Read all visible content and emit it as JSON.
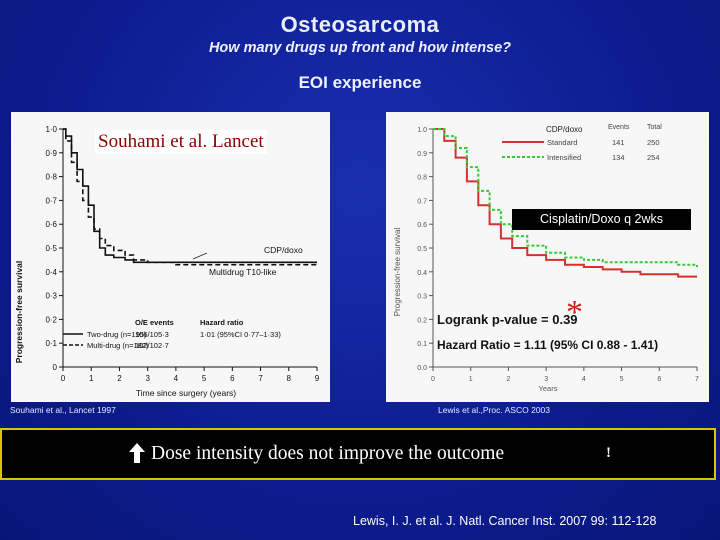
{
  "slide": {
    "title": "Osteosarcoma",
    "subtitle": "How many drugs up front and how intense?",
    "section": "EOI experience",
    "overlay_left": "Souhami et al. Lancet",
    "overlay_right": "Cisplatin/Doxo q 2wks",
    "asterisk": "*",
    "cite_left": "Souhami et al., Lancet 1997",
    "cite_right": "Lewis et al.,Proc. ASCO 2003",
    "banner_text": "Dose intensity does not improve the outcome",
    "banner_excl": "!",
    "reference": "Lewis, I. J. et al. J. Natl. Cancer Inst. 2007 99: 112-128",
    "colors": {
      "background": "#0d1d92",
      "banner_border": "#d9c400",
      "overlay_text": "#8b0000",
      "asterisk": "#d21b1b"
    }
  },
  "chart_data": [
    {
      "type": "line",
      "ylabel": "Progression-free survival",
      "xlabel": "Time since surgery (years)",
      "xlim": [
        0,
        9
      ],
      "ylim": [
        0,
        1.0
      ],
      "x_ticks": [
        "0",
        "1",
        "2",
        "3",
        "4",
        "5",
        "6",
        "7",
        "8",
        "9"
      ],
      "y_ticks": [
        "0",
        "0·1",
        "0·2",
        "0·3",
        "0·4",
        "0·5",
        "0·6",
        "0·7",
        "0·8",
        "0·9",
        "1·0"
      ],
      "annotation_cdp": "CDP/doxo",
      "annotation_multi": "Multidrug T10-like",
      "table_headers": [
        "O/E events",
        "Hazard ratio"
      ],
      "table_rows": [
        {
          "label": "Two-drug (n=195)",
          "oe": "106/105·3",
          "hr": "1·01 (95%CI 0·77–1·33)"
        },
        {
          "label": "Multi-drug (n=182)",
          "oe": "102/102·7",
          "hr": ""
        }
      ],
      "series": [
        {
          "name": "Two-drug (n=195)",
          "style": "solid",
          "x": [
            0,
            0.1,
            0.3,
            0.5,
            0.7,
            0.9,
            1.1,
            1.3,
            1.5,
            1.8,
            2.2,
            2.5,
            3,
            4,
            5,
            6,
            7,
            8,
            9
          ],
          "y": [
            1.0,
            0.97,
            0.9,
            0.83,
            0.76,
            0.68,
            0.57,
            0.5,
            0.47,
            0.46,
            0.45,
            0.44,
            0.44,
            0.44,
            0.44,
            0.44,
            0.44,
            0.44,
            0.44
          ]
        },
        {
          "name": "Multi-drug (n=182)",
          "style": "dashed",
          "x": [
            0,
            0.1,
            0.3,
            0.5,
            0.7,
            0.9,
            1.1,
            1.3,
            1.5,
            1.8,
            2.2,
            2.5,
            3,
            4,
            5,
            6,
            7,
            8,
            9
          ],
          "y": [
            1.0,
            0.95,
            0.86,
            0.78,
            0.7,
            0.63,
            0.58,
            0.54,
            0.51,
            0.49,
            0.47,
            0.45,
            0.44,
            0.43,
            0.43,
            0.43,
            0.43,
            0.43,
            0.43
          ]
        }
      ]
    },
    {
      "type": "line",
      "ylabel": "Progression-free survival",
      "xlabel": "Years",
      "xlim": [
        0,
        7
      ],
      "ylim": [
        0,
        1.0
      ],
      "x_ticks": [
        "0",
        "1",
        "2",
        "3",
        "4",
        "5",
        "6",
        "7"
      ],
      "y_ticks": [
        "0.0",
        "0.1",
        "0.2",
        "0.3",
        "0.4",
        "0.5",
        "0.6",
        "0.7",
        "0.8",
        "0.9",
        "1.0"
      ],
      "legend_title": "CDP/doxo",
      "legend_headers": [
        "Events",
        "Total"
      ],
      "legend_rows": [
        {
          "name": "Standard",
          "events": "141",
          "total": "250"
        },
        {
          "name": "Intensified",
          "events": "134",
          "total": "254"
        }
      ],
      "logrank": "Logrank p-value = 0.39",
      "hazard": "Hazard Ratio = 1.11 (95% CI 0.88 - 1.41)",
      "series": [
        {
          "name": "Standard",
          "color": "#d63030",
          "x": [
            0,
            0.3,
            0.6,
            0.9,
            1.2,
            1.5,
            1.8,
            2.1,
            2.5,
            3,
            3.5,
            4,
            4.5,
            5,
            5.5,
            6,
            6.5,
            7
          ],
          "y": [
            1.0,
            0.95,
            0.88,
            0.78,
            0.68,
            0.6,
            0.54,
            0.5,
            0.47,
            0.45,
            0.43,
            0.42,
            0.41,
            0.4,
            0.39,
            0.39,
            0.38,
            0.38
          ]
        },
        {
          "name": "Intensified",
          "color": "#38c838",
          "x": [
            0,
            0.3,
            0.6,
            0.9,
            1.2,
            1.5,
            1.8,
            2.1,
            2.5,
            3,
            3.5,
            4,
            4.5,
            5,
            5.5,
            6,
            6.5,
            7
          ],
          "y": [
            1.0,
            0.97,
            0.92,
            0.84,
            0.74,
            0.66,
            0.6,
            0.55,
            0.51,
            0.48,
            0.46,
            0.45,
            0.44,
            0.44,
            0.44,
            0.44,
            0.43,
            0.42
          ]
        }
      ]
    }
  ]
}
